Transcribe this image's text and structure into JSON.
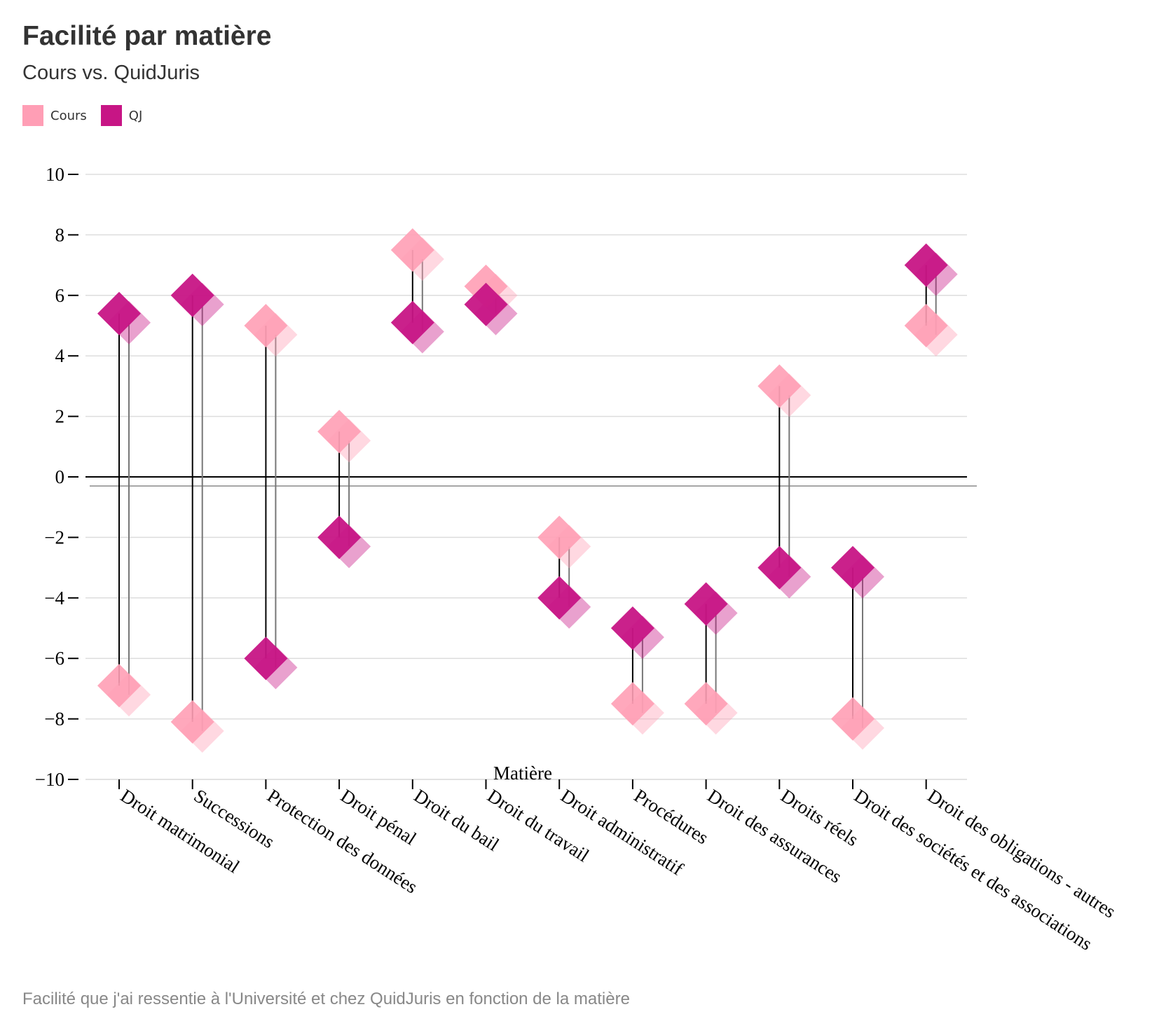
{
  "title": "Facilité par matière",
  "subtitle": "Cours vs. QuidJuris",
  "legend": [
    {
      "label": "Cours",
      "color": "#ff9eb5"
    },
    {
      "label": "QJ",
      "color": "#c71585"
    }
  ],
  "footnote": "Facilité que j'ai ressentie à l'Université et chez QuidJuris en fonction de la matière",
  "chart_data": {
    "type": "dumbbell",
    "xlabel": "Matière",
    "ylabel": "",
    "ylim": [
      -10,
      10
    ],
    "yticks": [
      10,
      8,
      6,
      4,
      2,
      0,
      -2,
      -4,
      -6,
      -8,
      -10
    ],
    "ytick_labels": [
      "10",
      "8",
      "6",
      "4",
      "2",
      "0",
      "−2",
      "−4",
      "−6",
      "−8",
      "−10"
    ],
    "grid": true,
    "categories": [
      "Droit matrimonial",
      "Successions",
      "Protection des données",
      "Droit pénal",
      "Droit du bail",
      "Droit du travail",
      "Droit administratif",
      "Procédures",
      "Droit des assurances",
      "Droits réels",
      "Droit des sociétés et des associations",
      "Droit des obligations - autres"
    ],
    "series": [
      {
        "name": "Cours",
        "color": "#ff9eb5",
        "values": [
          -6.9,
          -8.1,
          5.0,
          1.5,
          7.5,
          6.3,
          -2.0,
          -7.5,
          -7.5,
          3.0,
          -8.0,
          5.0
        ]
      },
      {
        "name": "QJ",
        "color": "#c71585",
        "values": [
          5.4,
          6.0,
          -6.0,
          -2.0,
          5.1,
          5.7,
          -4.0,
          -5.0,
          -4.2,
          -3.0,
          -3.0,
          7.0
        ]
      }
    ]
  }
}
